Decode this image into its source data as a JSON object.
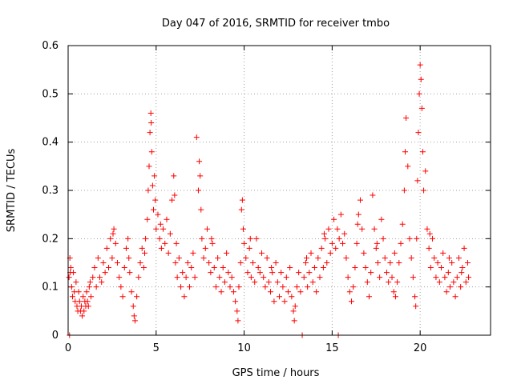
{
  "chart_data": {
    "type": "scatter",
    "title": "Day 047 of 2016, SRMTID for receiver tmbo",
    "xlabel": "GPS time / hours",
    "ylabel": "SRMTID / TECUs",
    "xlim": [
      0,
      24
    ],
    "ylim": [
      0,
      0.6
    ],
    "xticks": [
      0,
      5,
      10,
      15,
      20
    ],
    "yticks": [
      0,
      0.1,
      0.2,
      0.3,
      0.4,
      0.5,
      0.6
    ],
    "xtick_labels": [
      "0",
      "5",
      "10",
      "15",
      "20"
    ],
    "ytick_labels": [
      "0",
      "0.1",
      "0.2",
      "0.3",
      "0.4",
      "0.5",
      "0.6"
    ],
    "grid": true,
    "marker": "+",
    "color": "#ff0000",
    "series": [
      {
        "name": "SRMTID",
        "points": [
          [
            0.05,
            0.12
          ],
          [
            0.1,
            0.16
          ],
          [
            0.15,
            0.14
          ],
          [
            0.2,
            0.1
          ],
          [
            0.25,
            0.08
          ],
          [
            0.3,
            0.13
          ],
          [
            0.35,
            0.09
          ],
          [
            0.4,
            0.07
          ],
          [
            0.45,
            0.11
          ],
          [
            0.5,
            0.06
          ],
          [
            0.55,
            0.05
          ],
          [
            0.6,
            0.09
          ],
          [
            0.65,
            0.07
          ],
          [
            0.7,
            0.05
          ],
          [
            0.75,
            0.06
          ],
          [
            0.8,
            0.04
          ],
          [
            0.85,
            0.08
          ],
          [
            0.9,
            0.05
          ],
          [
            0.95,
            0.07
          ],
          [
            1.0,
            0.06
          ],
          [
            1.05,
            0.09
          ],
          [
            1.1,
            0.07
          ],
          [
            1.15,
            0.06
          ],
          [
            1.2,
            0.1
          ],
          [
            1.3,
            0.08
          ],
          [
            1.4,
            0.12
          ],
          [
            1.5,
            0.14
          ],
          [
            1.6,
            0.1
          ],
          [
            1.7,
            0.16
          ],
          [
            1.8,
            0.12
          ],
          [
            1.9,
            0.11
          ],
          [
            2.0,
            0.15
          ],
          [
            2.1,
            0.13
          ],
          [
            2.2,
            0.18
          ],
          [
            2.3,
            0.14
          ],
          [
            2.4,
            0.2
          ],
          [
            2.5,
            0.16
          ],
          [
            2.6,
            0.22
          ],
          [
            2.7,
            0.19
          ],
          [
            2.8,
            0.15
          ],
          [
            2.9,
            0.12
          ],
          [
            3.0,
            0.1
          ],
          [
            3.1,
            0.08
          ],
          [
            3.2,
            0.14
          ],
          [
            3.3,
            0.18
          ],
          [
            3.4,
            0.2
          ],
          [
            3.5,
            0.13
          ],
          [
            3.6,
            0.09
          ],
          [
            3.7,
            0.06
          ],
          [
            3.75,
            0.04
          ],
          [
            3.8,
            0.03
          ],
          [
            3.9,
            0.08
          ],
          [
            4.0,
            0.12
          ],
          [
            4.1,
            0.15
          ],
          [
            4.2,
            0.18
          ],
          [
            4.3,
            0.14
          ],
          [
            4.4,
            0.2
          ],
          [
            4.5,
            0.24
          ],
          [
            4.55,
            0.3
          ],
          [
            4.6,
            0.35
          ],
          [
            4.65,
            0.42
          ],
          [
            4.7,
            0.46
          ],
          [
            4.72,
            0.44
          ],
          [
            4.75,
            0.38
          ],
          [
            4.8,
            0.31
          ],
          [
            4.85,
            0.26
          ],
          [
            4.9,
            0.33
          ],
          [
            4.95,
            0.28
          ],
          [
            5.0,
            0.22
          ],
          [
            5.1,
            0.25
          ],
          [
            5.2,
            0.2
          ],
          [
            5.3,
            0.18
          ],
          [
            5.4,
            0.22
          ],
          [
            5.5,
            0.19
          ],
          [
            5.6,
            0.24
          ],
          [
            5.7,
            0.17
          ],
          [
            5.8,
            0.21
          ],
          [
            5.9,
            0.28
          ],
          [
            6.0,
            0.33
          ],
          [
            6.05,
            0.29
          ],
          [
            6.1,
            0.15
          ],
          [
            6.2,
            0.12
          ],
          [
            6.3,
            0.16
          ],
          [
            6.4,
            0.1
          ],
          [
            6.5,
            0.13
          ],
          [
            6.6,
            0.08
          ],
          [
            6.7,
            0.12
          ],
          [
            6.8,
            0.15
          ],
          [
            6.9,
            0.1
          ],
          [
            7.0,
            0.14
          ],
          [
            7.1,
            0.17
          ],
          [
            7.2,
            0.12
          ],
          [
            7.3,
            0.41
          ],
          [
            7.4,
            0.3
          ],
          [
            7.45,
            0.36
          ],
          [
            7.5,
            0.33
          ],
          [
            7.55,
            0.26
          ],
          [
            7.6,
            0.2
          ],
          [
            7.7,
            0.16
          ],
          [
            7.8,
            0.18
          ],
          [
            7.9,
            0.22
          ],
          [
            8.0,
            0.15
          ],
          [
            8.1,
            0.13
          ],
          [
            8.2,
            0.19
          ],
          [
            8.3,
            0.14
          ],
          [
            8.4,
            0.1
          ],
          [
            8.5,
            0.16
          ],
          [
            8.6,
            0.12
          ],
          [
            8.7,
            0.09
          ],
          [
            8.8,
            0.14
          ],
          [
            8.9,
            0.11
          ],
          [
            9.0,
            0.17
          ],
          [
            9.1,
            0.13
          ],
          [
            9.2,
            0.1
          ],
          [
            9.3,
            0.12
          ],
          [
            9.4,
            0.09
          ],
          [
            9.5,
            0.07
          ],
          [
            9.6,
            0.05
          ],
          [
            9.65,
            0.03
          ],
          [
            9.7,
            0.1
          ],
          [
            9.8,
            0.15
          ],
          [
            9.85,
            0.26
          ],
          [
            9.9,
            0.28
          ],
          [
            9.95,
            0.22
          ],
          [
            10.0,
            0.19
          ],
          [
            10.1,
            0.16
          ],
          [
            10.2,
            0.13
          ],
          [
            10.3,
            0.18
          ],
          [
            10.4,
            0.12
          ],
          [
            10.5,
            0.15
          ],
          [
            10.6,
            0.11
          ],
          [
            10.7,
            0.2
          ],
          [
            10.8,
            0.14
          ],
          [
            10.9,
            0.13
          ],
          [
            11.0,
            0.17
          ],
          [
            11.1,
            0.12
          ],
          [
            11.2,
            0.1
          ],
          [
            11.3,
            0.16
          ],
          [
            11.4,
            0.11
          ],
          [
            11.5,
            0.09
          ],
          [
            11.6,
            0.13
          ],
          [
            11.7,
            0.07
          ],
          [
            11.8,
            0.15
          ],
          [
            11.9,
            0.11
          ],
          [
            12.0,
            0.08
          ],
          [
            12.1,
            0.13
          ],
          [
            12.2,
            0.1
          ],
          [
            12.3,
            0.07
          ],
          [
            12.4,
            0.12
          ],
          [
            12.5,
            0.09
          ],
          [
            12.6,
            0.14
          ],
          [
            12.7,
            0.08
          ],
          [
            12.8,
            0.05
          ],
          [
            12.85,
            0.03
          ],
          [
            12.9,
            0.06
          ],
          [
            13.0,
            0.1
          ],
          [
            13.1,
            0.13
          ],
          [
            13.2,
            0.09
          ],
          [
            13.3,
            0.0
          ],
          [
            13.4,
            0.12
          ],
          [
            13.5,
            0.15
          ],
          [
            13.6,
            0.1
          ],
          [
            13.7,
            0.13
          ],
          [
            13.8,
            0.17
          ],
          [
            13.9,
            0.11
          ],
          [
            14.0,
            0.14
          ],
          [
            14.1,
            0.09
          ],
          [
            14.2,
            0.16
          ],
          [
            14.3,
            0.12
          ],
          [
            14.4,
            0.18
          ],
          [
            14.5,
            0.14
          ],
          [
            14.6,
            0.2
          ],
          [
            14.7,
            0.15
          ],
          [
            14.8,
            0.22
          ],
          [
            14.9,
            0.17
          ],
          [
            15.0,
            0.19
          ],
          [
            15.1,
            0.24
          ],
          [
            15.2,
            0.18
          ],
          [
            15.3,
            0.22
          ],
          [
            15.35,
            0.0
          ],
          [
            15.4,
            0.2
          ],
          [
            15.5,
            0.25
          ],
          [
            15.6,
            0.19
          ],
          [
            15.7,
            0.21
          ],
          [
            15.8,
            0.16
          ],
          [
            15.9,
            0.12
          ],
          [
            16.0,
            0.09
          ],
          [
            16.1,
            0.07
          ],
          [
            16.2,
            0.1
          ],
          [
            16.3,
            0.14
          ],
          [
            16.4,
            0.19
          ],
          [
            16.5,
            0.25
          ],
          [
            16.6,
            0.28
          ],
          [
            16.7,
            0.22
          ],
          [
            16.8,
            0.17
          ],
          [
            16.9,
            0.14
          ],
          [
            17.0,
            0.11
          ],
          [
            17.1,
            0.08
          ],
          [
            17.2,
            0.13
          ],
          [
            17.3,
            0.29
          ],
          [
            17.4,
            0.22
          ],
          [
            17.5,
            0.18
          ],
          [
            17.6,
            0.15
          ],
          [
            17.7,
            0.12
          ],
          [
            17.8,
            0.24
          ],
          [
            17.9,
            0.2
          ],
          [
            18.0,
            0.16
          ],
          [
            18.1,
            0.13
          ],
          [
            18.2,
            0.11
          ],
          [
            18.3,
            0.15
          ],
          [
            18.4,
            0.12
          ],
          [
            18.5,
            0.09
          ],
          [
            18.6,
            0.08
          ],
          [
            18.7,
            0.11
          ],
          [
            18.8,
            0.15
          ],
          [
            18.9,
            0.19
          ],
          [
            19.0,
            0.23
          ],
          [
            19.1,
            0.3
          ],
          [
            19.15,
            0.38
          ],
          [
            19.2,
            0.45
          ],
          [
            19.3,
            0.35
          ],
          [
            19.4,
            0.2
          ],
          [
            19.5,
            0.16
          ],
          [
            19.6,
            0.12
          ],
          [
            19.7,
            0.08
          ],
          [
            19.75,
            0.06
          ],
          [
            19.8,
            0.2
          ],
          [
            19.85,
            0.32
          ],
          [
            19.9,
            0.42
          ],
          [
            19.95,
            0.5
          ],
          [
            20.0,
            0.56
          ],
          [
            20.05,
            0.53
          ],
          [
            20.1,
            0.47
          ],
          [
            20.15,
            0.38
          ],
          [
            20.2,
            0.3
          ],
          [
            20.3,
            0.34
          ],
          [
            20.4,
            0.22
          ],
          [
            20.5,
            0.18
          ],
          [
            20.6,
            0.14
          ],
          [
            20.7,
            0.2
          ],
          [
            20.8,
            0.16
          ],
          [
            20.9,
            0.12
          ],
          [
            21.0,
            0.15
          ],
          [
            21.1,
            0.11
          ],
          [
            21.2,
            0.14
          ],
          [
            21.3,
            0.17
          ],
          [
            21.4,
            0.12
          ],
          [
            21.5,
            0.09
          ],
          [
            21.6,
            0.13
          ],
          [
            21.7,
            0.1
          ],
          [
            21.8,
            0.15
          ],
          [
            21.9,
            0.11
          ],
          [
            22.0,
            0.08
          ],
          [
            22.1,
            0.12
          ],
          [
            22.2,
            0.16
          ],
          [
            22.3,
            0.1
          ],
          [
            22.4,
            0.14
          ],
          [
            22.5,
            0.18
          ],
          [
            22.6,
            0.11
          ],
          [
            22.7,
            0.15
          ],
          [
            22.75,
            0.12
          ],
          [
            0.08,
            0.0
          ],
          [
            0.12,
            0.13
          ],
          [
            1.25,
            0.11
          ],
          [
            2.55,
            0.21
          ],
          [
            3.45,
            0.16
          ],
          [
            4.35,
            0.17
          ],
          [
            5.25,
            0.23
          ],
          [
            6.15,
            0.19
          ],
          [
            8.15,
            0.2
          ],
          [
            10.35,
            0.2
          ],
          [
            11.55,
            0.14
          ],
          [
            13.55,
            0.16
          ],
          [
            14.55,
            0.21
          ],
          [
            16.45,
            0.23
          ],
          [
            17.55,
            0.19
          ],
          [
            18.55,
            0.17
          ],
          [
            20.55,
            0.21
          ],
          [
            21.65,
            0.16
          ],
          [
            22.35,
            0.13
          ]
        ]
      }
    ]
  }
}
